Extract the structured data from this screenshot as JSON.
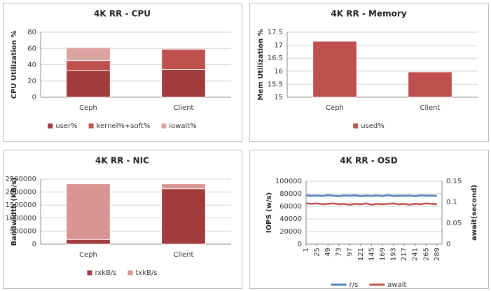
{
  "chart_data": [
    {
      "type": "bar",
      "stacked": true,
      "title": "4K RR - CPU",
      "y_label": "CPU Utilization %",
      "categories": [
        "Ceph",
        "Client"
      ],
      "series": [
        {
          "name": "user%",
          "color": "#a23b3b",
          "values": [
            33,
            34
          ]
        },
        {
          "name": "kernel%+soft%",
          "color": "#c0504d",
          "values": [
            12,
            25
          ]
        },
        {
          "name": "iowait%",
          "color": "#dba3a2",
          "values": [
            16,
            0
          ]
        }
      ],
      "ylim": [
        0,
        80
      ],
      "yticks": [
        0,
        20,
        40,
        60,
        80
      ],
      "grid": true,
      "legend": "bottom"
    },
    {
      "type": "bar",
      "stacked": true,
      "title": "4K RR - Memory",
      "y_label": "Mem Utilization %",
      "categories": [
        "Ceph",
        "Client"
      ],
      "series": [
        {
          "name": "used%",
          "color": "#c0504d",
          "values": [
            17.15,
            15.97
          ]
        }
      ],
      "ylim": [
        15,
        17.5
      ],
      "yticks": [
        15,
        15.5,
        16,
        16.5,
        17,
        17.5
      ],
      "grid": true,
      "legend": "bottom"
    },
    {
      "type": "bar",
      "stacked": true,
      "title": "4K RR - NIC",
      "y_label": "Bandwidth (KB/s)",
      "categories": [
        "Ceph",
        "Client"
      ],
      "series": [
        {
          "name": "rxkB/s",
          "color": "#a23b3b",
          "values": [
            180000,
            2130000
          ]
        },
        {
          "name": "txkB/s",
          "color": "#d99594",
          "values": [
            2140000,
            190000
          ]
        }
      ],
      "ylim": [
        0,
        2500000
      ],
      "yticks": [
        0,
        500000,
        1000000,
        1500000,
        2000000,
        2500000
      ],
      "grid": true,
      "legend": "bottom"
    },
    {
      "type": "line",
      "title": "4K RR - OSD",
      "y_label": "IOPS (w/s)",
      "y2_label": "await(second)",
      "x": [
        1,
        13,
        25,
        37,
        49,
        61,
        73,
        85,
        97,
        109,
        121,
        133,
        145,
        157,
        169,
        181,
        193,
        205,
        217,
        229,
        241,
        253,
        265,
        277,
        289
      ],
      "series": [
        {
          "name": "r/s",
          "color": "#4f81bd",
          "values": [
            77500,
            76800,
            77200,
            76500,
            77800,
            77000,
            76300,
            77400,
            76900,
            77600,
            76200,
            77100,
            76700,
            77300,
            76400,
            77700,
            76600,
            77000,
            76800,
            77200,
            76300,
            77500,
            76900,
            77100,
            76600
          ]
        },
        {
          "name": "await",
          "color": "#c0504d",
          "axis": "y2",
          "values": [
            0.097,
            0.096,
            0.097,
            0.095,
            0.096,
            0.097,
            0.095,
            0.096,
            0.094,
            0.096,
            0.095,
            0.097,
            0.094,
            0.096,
            0.095,
            0.096,
            0.097,
            0.095,
            0.096,
            0.094,
            0.096,
            0.095,
            0.097,
            0.096,
            0.095
          ]
        }
      ],
      "xlim": [
        1,
        300
      ],
      "xticks": [
        1,
        25,
        49,
        73,
        97,
        121,
        145,
        169,
        193,
        217,
        241,
        265,
        289
      ],
      "ylim": [
        0,
        100000
      ],
      "yticks": [
        0,
        20000,
        40000,
        60000,
        80000,
        100000
      ],
      "y2lim": [
        0,
        0.15
      ],
      "y2ticks": [
        0,
        0.05,
        0.1,
        0.15
      ],
      "grid": true,
      "legend": "bottom"
    }
  ]
}
